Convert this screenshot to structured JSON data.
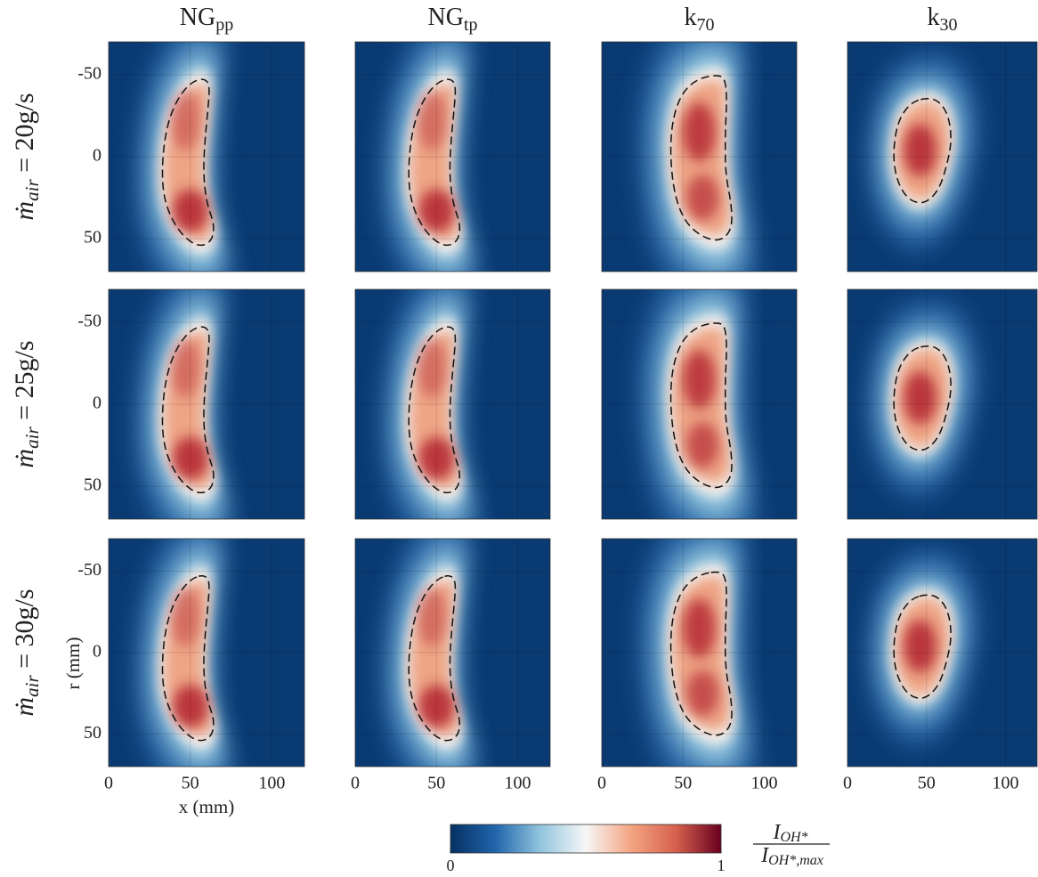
{
  "chart_data": {
    "type": "image-grid",
    "columns": [
      {
        "base": "NG",
        "sub": "pp"
      },
      {
        "base": "NG",
        "sub": "tp"
      },
      {
        "base": "k",
        "sub": "70"
      },
      {
        "base": "k",
        "sub": "30"
      }
    ],
    "rows": [
      {
        "base": "ṁ",
        "sub": "air",
        "rest": " = 20g/s"
      },
      {
        "base": "ṁ",
        "sub": "air",
        "rest": " = 25g/s"
      },
      {
        "base": "ṁ",
        "sub": "air",
        "rest": " = 30g/s"
      }
    ],
    "xlabel": "x (mm)",
    "ylabel": "r (mm)",
    "xlim": [
      0,
      120
    ],
    "xticks": [
      0,
      50,
      100
    ],
    "ylim": [
      -70,
      70
    ],
    "yticks": [
      -50,
      0,
      50
    ],
    "grid": true,
    "colorbar": {
      "lim": [
        0,
        1
      ],
      "ticks": [
        0,
        1
      ],
      "colors": [
        "#053061",
        "#2166ac",
        "#92c5de",
        "#f7f7f7",
        "#f4a582",
        "#d6604d",
        "#67001f"
      ],
      "label": {
        "num_base": "I",
        "num_sub": "OH*",
        "den_base": "I",
        "den_sub": "OH*,max"
      }
    }
  }
}
